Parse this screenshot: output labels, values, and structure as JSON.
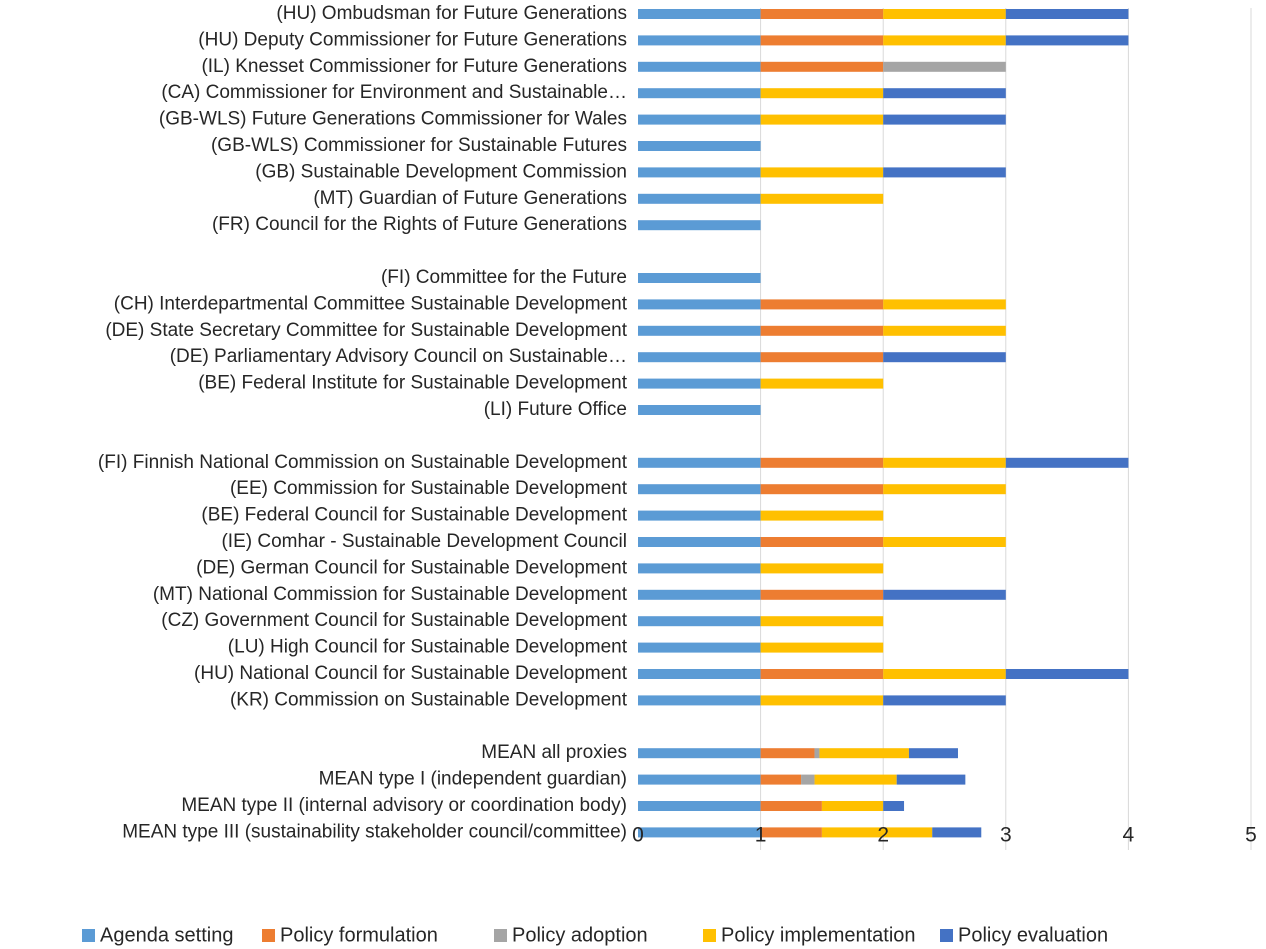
{
  "chart_data": {
    "type": "bar",
    "orientation": "horizontal",
    "stacked": true,
    "xlim": [
      0,
      5
    ],
    "xticks": [
      "0",
      "1",
      "2",
      "3",
      "4",
      "5"
    ],
    "grid": "vertical",
    "legend_position": "bottom",
    "categories": [
      "(HU) Ombudsman for Future Generations",
      "(HU) Deputy Commissioner for Future Generations",
      "(IL) Knesset Commissioner for Future Generations",
      "(CA) Commissioner for Environment and Sustainable…",
      "(GB-WLS) Future Generations Commissioner for Wales",
      "(GB-WLS) Commissioner for Sustainable Futures",
      "(GB) Sustainable Development Commission",
      "(MT) Guardian of Future Generations",
      "(FR) Council for the Rights of Future Generations",
      "",
      "(FI) Committee for the Future",
      "(CH) Interdepartmental Committee Sustainable Development",
      "(DE) State Secretary Committee for Sustainable Development",
      "(DE) Parliamentary Advisory Council on Sustainable…",
      "(BE) Federal Institute for Sustainable Development",
      "(LI) Future Office",
      "",
      "(FI) Finnish National Commission on Sustainable Development",
      "(EE) Commission for Sustainable Development",
      "(BE) Federal Council for Sustainable Development",
      "(IE) Comhar - Sustainable Development Council",
      "(DE) German Council for Sustainable Development",
      "(MT) National Commission for Sustainable Development",
      "(CZ) Government Council for Sustainable Development",
      "(LU) High Council for Sustainable Development",
      "(HU) National Council for Sustainable Development",
      "(KR) Commission on Sustainable Development",
      "",
      "MEAN all proxies",
      "MEAN type I (independent guardian)",
      "MEAN type II (internal advisory or coordination body)",
      "MEAN type III (sustainability stakeholder council/committee)"
    ],
    "series": [
      {
        "name": "Agenda setting",
        "color": "#5B9BD5",
        "values": [
          1,
          1,
          1,
          1,
          1,
          1,
          1,
          1,
          1,
          0,
          1,
          1,
          1,
          1,
          1,
          1,
          0,
          1,
          1,
          1,
          1,
          1,
          1,
          1,
          1,
          1,
          1,
          0,
          1,
          1,
          1,
          1
        ]
      },
      {
        "name": "Policy formulation",
        "color": "#ED7D31",
        "values": [
          1,
          1,
          1,
          0,
          0,
          0,
          0,
          0,
          0,
          0,
          0,
          1,
          1,
          1,
          0,
          0,
          0,
          1,
          1,
          0,
          1,
          0,
          1,
          0,
          0,
          1,
          0,
          0,
          0.44,
          0.33,
          0.5,
          0.5
        ]
      },
      {
        "name": "Policy adoption",
        "color": "#A5A5A5",
        "values": [
          0,
          0,
          1,
          0,
          0,
          0,
          0,
          0,
          0,
          0,
          0,
          0,
          0,
          0,
          0,
          0,
          0,
          0,
          0,
          0,
          0,
          0,
          0,
          0,
          0,
          0,
          0,
          0,
          0.04,
          0.11,
          0,
          0
        ]
      },
      {
        "name": "Policy implementation",
        "color": "#FFC000",
        "values": [
          1,
          1,
          0,
          1,
          1,
          0,
          1,
          1,
          0,
          0,
          0,
          1,
          1,
          0,
          1,
          0,
          0,
          1,
          1,
          1,
          1,
          1,
          0,
          1,
          1,
          1,
          1,
          0,
          0.73,
          0.67,
          0.5,
          0.9
        ]
      },
      {
        "name": "Policy evaluation",
        "color": "#4472C4",
        "values": [
          1,
          1,
          0,
          1,
          1,
          0,
          1,
          0,
          0,
          0,
          0,
          0,
          0,
          1,
          0,
          0,
          0,
          1,
          0,
          0,
          0,
          0,
          1,
          0,
          0,
          1,
          1,
          0,
          0.4,
          0.56,
          0.17,
          0.4
        ]
      }
    ]
  }
}
